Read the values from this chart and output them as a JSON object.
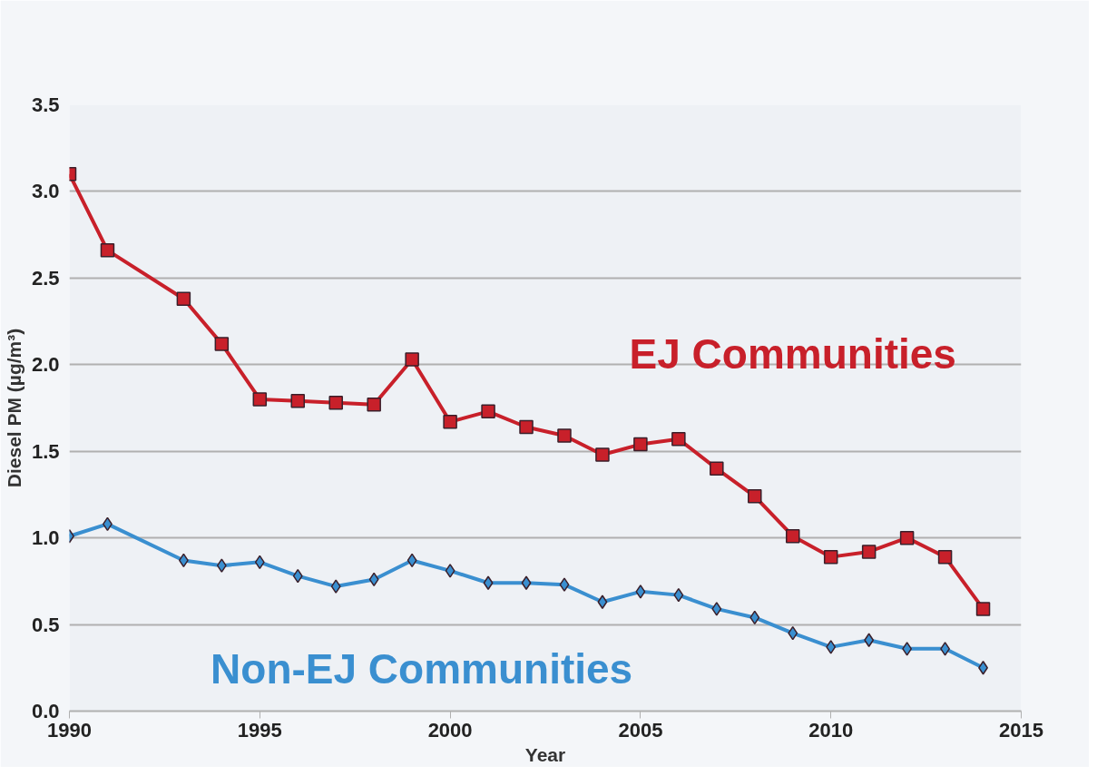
{
  "chart_data": {
    "type": "line",
    "xlabel": "Year",
    "ylabel": "Diesel PM (µg/m³)",
    "x": [
      1990,
      1991,
      1993,
      1994,
      1995,
      1996,
      1997,
      1998,
      1999,
      2000,
      2001,
      2002,
      2003,
      2004,
      2005,
      2006,
      2007,
      2008,
      2009,
      2010,
      2011,
      2012,
      2013,
      2014
    ],
    "series": [
      {
        "name": "EJ Communities",
        "color": "#c8202a",
        "marker": "square",
        "values": [
          3.1,
          2.66,
          2.38,
          2.12,
          1.8,
          1.79,
          1.78,
          1.77,
          2.03,
          1.67,
          1.73,
          1.64,
          1.59,
          1.48,
          1.54,
          1.57,
          1.4,
          1.24,
          1.01,
          0.89,
          0.92,
          1.0,
          0.89,
          0.59
        ]
      },
      {
        "name": "Non-EJ Communities",
        "color": "#3a8fd0",
        "marker": "diamond",
        "values": [
          1.01,
          1.08,
          0.87,
          0.84,
          0.86,
          0.78,
          0.72,
          0.76,
          0.87,
          0.81,
          0.74,
          0.74,
          0.73,
          0.63,
          0.69,
          0.67,
          0.59,
          0.54,
          0.45,
          0.37,
          0.41,
          0.36,
          0.36,
          0.25
        ]
      }
    ],
    "xlim": [
      1990,
      2015
    ],
    "ylim": [
      0,
      3.5
    ],
    "xticks": [
      1990,
      1995,
      2000,
      2005,
      2010,
      2015
    ],
    "yticks": [
      {
        "value": 0,
        "label": "0.0"
      },
      {
        "value": 0.5,
        "label": "0.5"
      },
      {
        "value": 1,
        "label": "1.0"
      },
      {
        "value": 1.5,
        "label": "1.5"
      },
      {
        "value": 2,
        "label": "2.0"
      },
      {
        "value": 2.5,
        "label": "2.5"
      },
      {
        "value": 3,
        "label": "3.0"
      },
      {
        "value": 3.5,
        "label": "3.5"
      }
    ],
    "grid": "y",
    "line_style": "solid"
  }
}
